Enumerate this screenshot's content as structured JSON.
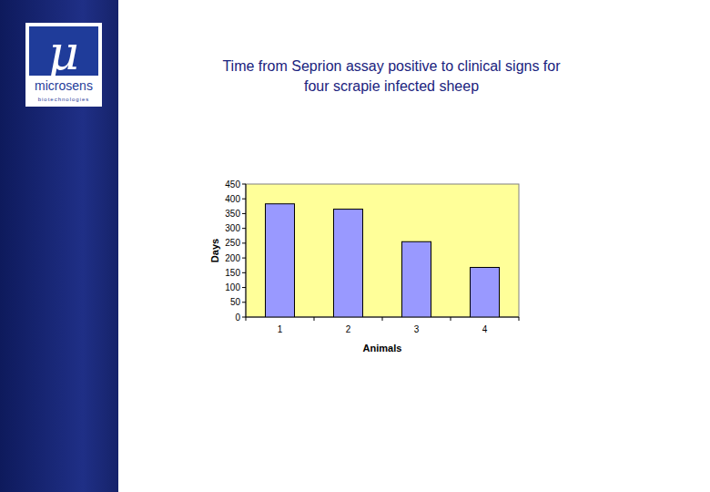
{
  "logo": {
    "symbol": "μ",
    "name": "microsens",
    "tagline": "biotechnologies"
  },
  "chart_data": {
    "type": "bar",
    "title": "Time from Seprion assay positive to clinical signs for four scrapie infected sheep",
    "x_label": "Animals",
    "y_label": "Days",
    "categories": [
      "1",
      "2",
      "3",
      "4"
    ],
    "values": [
      383,
      365,
      255,
      168
    ],
    "color": "#9999ff",
    "ylim": [
      0,
      450
    ],
    "yticks": [
      0,
      50,
      100,
      150,
      200,
      250,
      300,
      350,
      400,
      450
    ],
    "grid": false
  }
}
